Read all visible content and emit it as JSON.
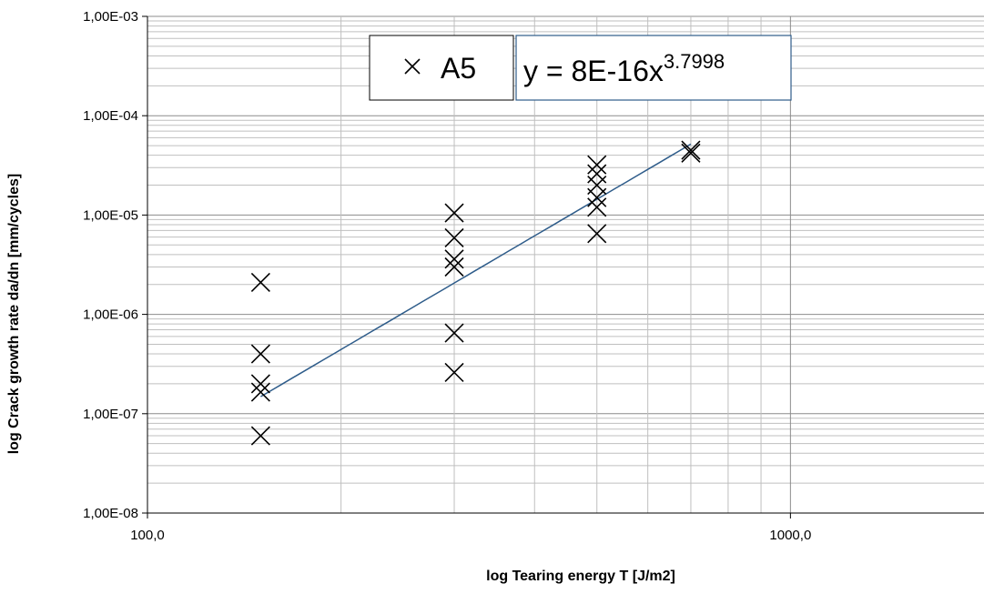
{
  "chart_data": {
    "type": "scatter",
    "title": "",
    "xlabel": "log Tearing energy T [J/m2]",
    "ylabel": "log Crack growth rate da/dn [mm/cycles]",
    "x_scale": "log",
    "y_scale": "log",
    "xlim": [
      100,
      2000
    ],
    "ylim": [
      1e-08,
      0.001
    ],
    "x_ticks": [
      {
        "value": 100,
        "label": "100,0"
      },
      {
        "value": 1000,
        "label": "1000,0"
      }
    ],
    "y_ticks": [
      {
        "value": 0.001,
        "label": "1,00E-03"
      },
      {
        "value": 0.0001,
        "label": "1,00E-04"
      },
      {
        "value": 1e-05,
        "label": "1,00E-05"
      },
      {
        "value": 1e-06,
        "label": "1,00E-06"
      },
      {
        "value": 1e-07,
        "label": "1,00E-07"
      },
      {
        "value": 1e-08,
        "label": "1,00E-08"
      }
    ],
    "grid": true,
    "legend_position": "top-center",
    "series": [
      {
        "name": "A5",
        "marker": "x",
        "color": "#000000",
        "points": [
          {
            "x": 150,
            "y": 2.1e-06
          },
          {
            "x": 150,
            "y": 4e-07
          },
          {
            "x": 150,
            "y": 2e-07
          },
          {
            "x": 150,
            "y": 1.65e-07
          },
          {
            "x": 150,
            "y": 6e-08
          },
          {
            "x": 300,
            "y": 1.05e-05
          },
          {
            "x": 300,
            "y": 5.9e-06
          },
          {
            "x": 300,
            "y": 3.6e-06
          },
          {
            "x": 300,
            "y": 3e-06
          },
          {
            "x": 300,
            "y": 6.5e-07
          },
          {
            "x": 300,
            "y": 2.6e-07
          },
          {
            "x": 500,
            "y": 3.2e-05
          },
          {
            "x": 500,
            "y": 2.6e-05
          },
          {
            "x": 500,
            "y": 2e-05
          },
          {
            "x": 500,
            "y": 1.5e-05
          },
          {
            "x": 500,
            "y": 1.2e-05
          },
          {
            "x": 500,
            "y": 6.5e-06
          },
          {
            "x": 700,
            "y": 4.5e-05
          },
          {
            "x": 700,
            "y": 4.2e-05
          }
        ]
      }
    ],
    "trendline": {
      "type": "power",
      "coefficient": 8e-16,
      "exponent": 3.7998,
      "x_range": [
        150,
        700
      ],
      "color": "#2e5c8a",
      "equation_base": "y = 8E-16x",
      "equation_exponent": "3.7998"
    },
    "colors": {
      "grid_major": "#8c8c8c",
      "grid_minor": "#bfbfbf",
      "axis": "#000000",
      "trend_box_border": "#2e5c8a"
    }
  }
}
